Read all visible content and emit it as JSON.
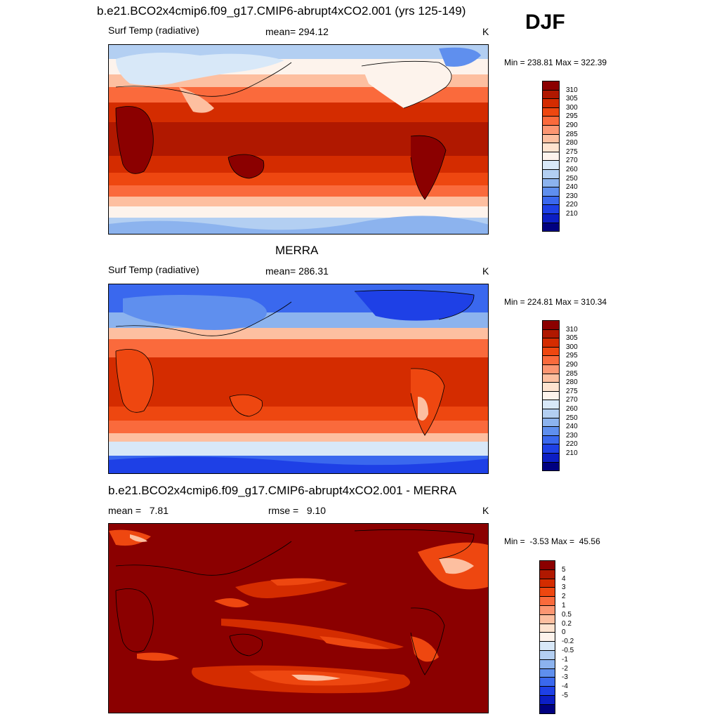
{
  "season": "DJF",
  "units": "K",
  "panel1": {
    "title": "b.e21.BCO2x4cmip6.f09_g17.CMIP6-abrupt4xCO2.001 (yrs 125-149)",
    "variable": "Surf Temp (radiative)",
    "mean_text": "mean= 294.12",
    "units": "K",
    "minmax": "Min = 238.81 Max = 322.39"
  },
  "panel2": {
    "title": "MERRA",
    "variable": "Surf Temp (radiative)",
    "mean_text": "mean= 286.31",
    "units": "K",
    "minmax": "Min = 224.81 Max = 310.34"
  },
  "panel3": {
    "title": "b.e21.BCO2x4cmip6.f09_g17.CMIP6-abrupt4xCO2.001 - MERRA",
    "mean_text": "mean =   7.81",
    "rmse_text": "rmse =   9.10",
    "units": "K",
    "minmax": "Min =  -3.53 Max =  45.56"
  },
  "colorbar_abs": {
    "labels": [
      "310",
      "305",
      "300",
      "295",
      "290",
      "285",
      "280",
      "275",
      "270",
      "260",
      "250",
      "240",
      "230",
      "220",
      "210"
    ],
    "colors": [
      "#8b0000",
      "#b01800",
      "#d42c00",
      "#ee4710",
      "#fa6a3c",
      "#fc9672",
      "#fdbfa0",
      "#fee3cf",
      "#fdf3ec",
      "#d8e8f8",
      "#b3cff2",
      "#8cb3ee",
      "#5f8fee",
      "#3a68ee",
      "#1e40e6",
      "#0c1ec4",
      "#000080"
    ]
  },
  "colorbar_diff": {
    "labels": [
      "5",
      "4",
      "3",
      "2",
      "1",
      "0.5",
      "0.2",
      "0",
      "-0.2",
      "-0.5",
      "-1",
      "-2",
      "-3",
      "-4",
      "-5"
    ],
    "colors": [
      "#8b0000",
      "#b01800",
      "#d42c00",
      "#ee4710",
      "#fa6a3c",
      "#fc9672",
      "#fdbfa0",
      "#fee3cf",
      "#fdf3ec",
      "#d8e8f8",
      "#b3cff2",
      "#8cb3ee",
      "#5f8fee",
      "#3a68ee",
      "#1e40e6",
      "#0c1ec4",
      "#000080"
    ]
  }
}
